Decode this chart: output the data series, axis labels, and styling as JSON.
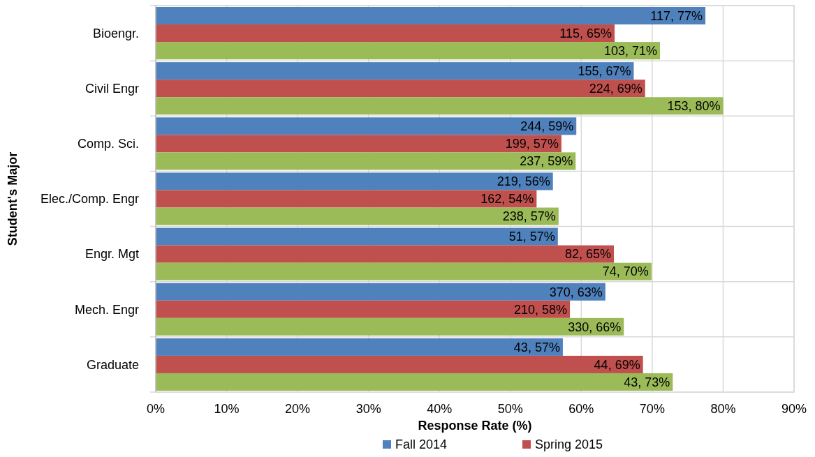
{
  "chart_data": {
    "type": "bar",
    "orientation": "horizontal",
    "xlabel": "Response Rate (%)",
    "ylabel": "Student's Major",
    "categories": [
      "Bioengr.",
      "Civil Engr",
      "Comp. Sci.",
      "Elec./Comp. Engr",
      "Engr. Mgt",
      "Mech. Engr",
      "Graduate"
    ],
    "series": [
      {
        "name": "Fall 2014",
        "color": "#4f81bd",
        "values": [
          77.5,
          67.4,
          59.3,
          56.0,
          56.7,
          63.4,
          57.4
        ],
        "value_labels": [
          "117, 77%",
          "155, 67%",
          "244, 59%",
          "219, 56%",
          "51, 57%",
          "370, 63%",
          "43, 57%"
        ]
      },
      {
        "name": "Spring 2015",
        "color": "#c0504d",
        "values": [
          64.7,
          69.0,
          57.2,
          53.7,
          64.6,
          58.4,
          68.7
        ],
        "value_labels": [
          "115, 65%",
          "224, 69%",
          "199, 57%",
          "162, 54%",
          "82, 65%",
          "210, 58%",
          "44, 69%"
        ]
      },
      {
        "color": "#9bbb59",
        "values": [
          71.1,
          80.0,
          59.2,
          56.8,
          69.9,
          66.0,
          72.9
        ],
        "value_labels": [
          "103, 71%",
          "153, 80%",
          "237, 59%",
          "238, 57%",
          "74, 70%",
          "330, 66%",
          "43, 73%"
        ]
      }
    ],
    "xlim": [
      0,
      90
    ],
    "xticks": [
      {
        "value": 0,
        "label": "0%"
      },
      {
        "value": 10,
        "label": "10%"
      },
      {
        "value": 20,
        "label": "20%"
      },
      {
        "value": 30,
        "label": "30%"
      },
      {
        "value": 40,
        "label": "40%"
      },
      {
        "value": 50,
        "label": "50%"
      },
      {
        "value": 60,
        "label": "60%"
      },
      {
        "value": 70,
        "label": "70%"
      },
      {
        "value": 80,
        "label": "80%"
      },
      {
        "value": 90,
        "label": "90%"
      }
    ],
    "grid": "x",
    "legend": "bottom"
  }
}
